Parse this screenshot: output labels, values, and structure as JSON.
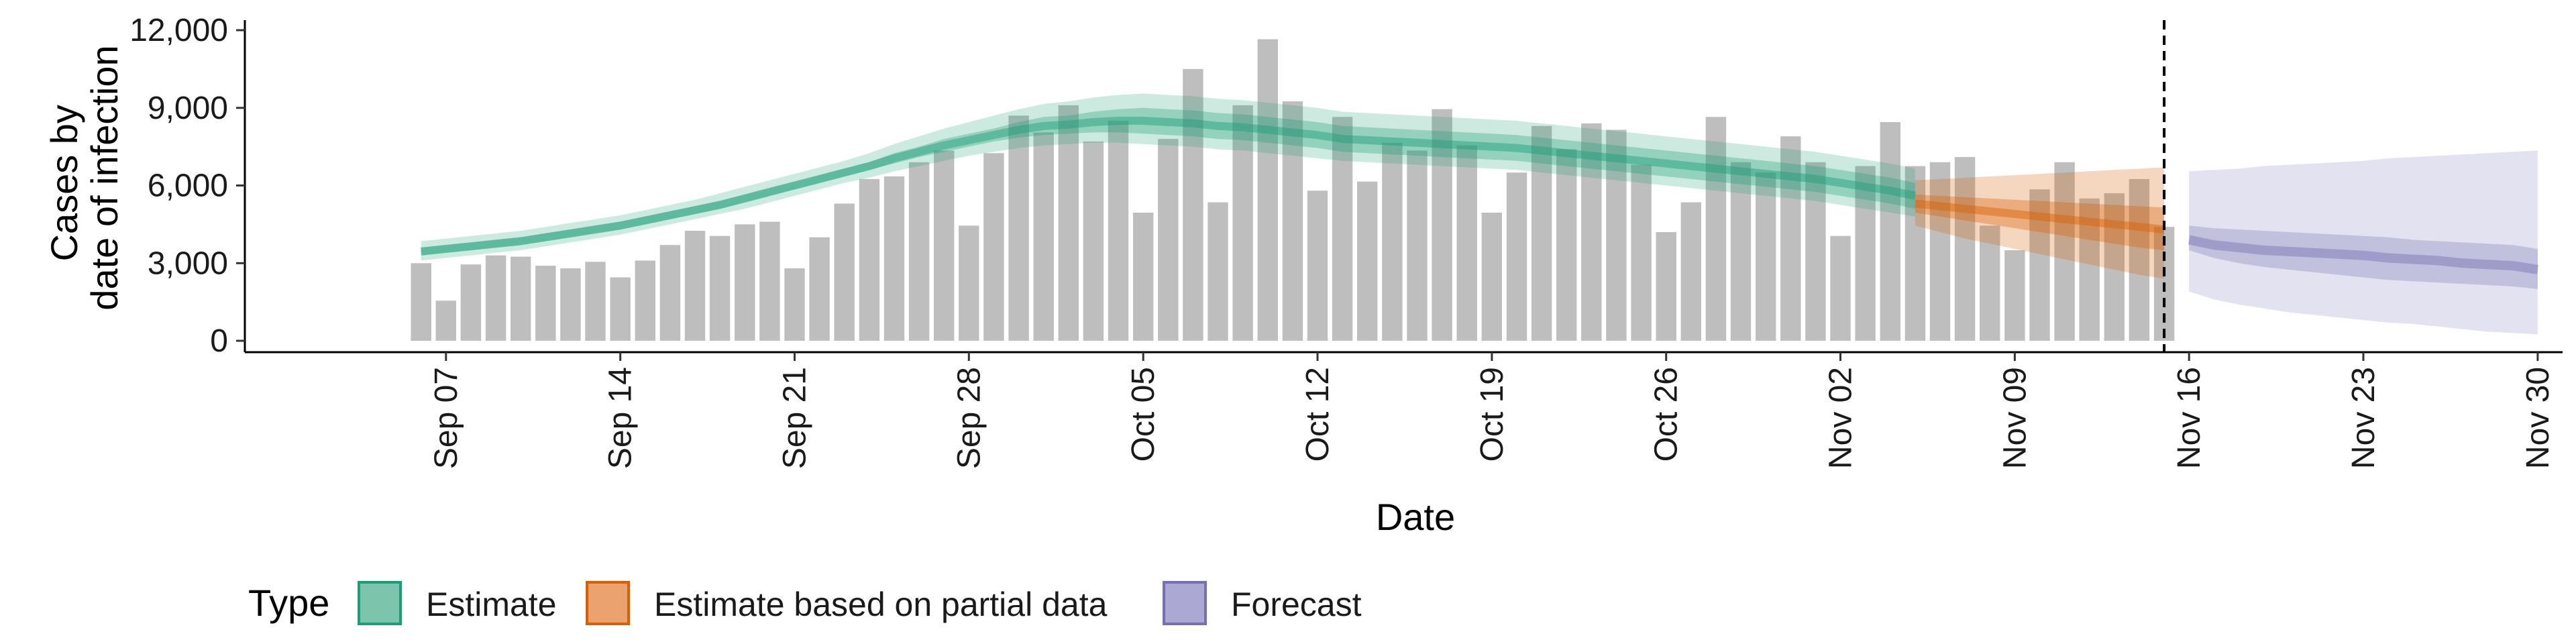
{
  "chart_data": {
    "type": "bar",
    "xlabel": "Date",
    "ylabel": [
      "Cases by",
      "date of infection"
    ],
    "ylim": [
      0,
      12000
    ],
    "y_ticks": [
      0,
      3000,
      6000,
      9000,
      12000
    ],
    "y_tick_labels": [
      "0",
      "3,000",
      "6,000",
      "9,000",
      "12,000"
    ],
    "x_range": [
      "2020-08-31",
      "2020-12-01"
    ],
    "x_ticks": [
      "2020-09-07",
      "2020-09-14",
      "2020-09-21",
      "2020-09-28",
      "2020-10-05",
      "2020-10-12",
      "2020-10-19",
      "2020-10-26",
      "2020-11-02",
      "2020-11-09",
      "2020-11-16",
      "2020-11-23",
      "2020-11-30"
    ],
    "x_tick_labels": [
      "Sep 07",
      "Sep 14",
      "Sep 21",
      "Sep 28",
      "Oct 05",
      "Oct 12",
      "Oct 19",
      "Oct 26",
      "Nov 02",
      "Nov 09",
      "Nov 16",
      "Nov 23",
      "Nov 30"
    ],
    "bars": {
      "start_date": "2020-09-06",
      "values": [
        3000,
        1550,
        2950,
        3300,
        3250,
        2900,
        2800,
        3050,
        2450,
        3100,
        3700,
        4250,
        4050,
        4500,
        4600,
        2800,
        4000,
        5300,
        6250,
        6350,
        6900,
        7350,
        4450,
        7250,
        8700,
        8050,
        9100,
        7700,
        8500,
        4950,
        7800,
        10500,
        5350,
        9100,
        11650,
        9250,
        5800,
        8650,
        6150,
        7650,
        7350,
        8950,
        7550,
        4950,
        6500,
        8300,
        7400,
        8400,
        8150,
        6800,
        4200,
        5350,
        8650,
        6900,
        6500,
        7900,
        6900,
        4050,
        6750,
        8450,
        6750,
        6900,
        7100,
        4450,
        3500,
        5850,
        6900,
        5500,
        5700,
        6250,
        4400
      ],
      "color": "#bebebe"
    },
    "estimate": {
      "name": "Estimate",
      "color": "#1b9e77",
      "start_date": "2020-09-06",
      "median": [
        3450,
        3550,
        3650,
        3750,
        3850,
        4000,
        4150,
        4300,
        4450,
        4650,
        4850,
        5050,
        5250,
        5500,
        5750,
        6000,
        6250,
        6500,
        6750,
        7050,
        7300,
        7550,
        7750,
        7950,
        8150,
        8300,
        8350,
        8450,
        8500,
        8500,
        8450,
        8400,
        8300,
        8250,
        8150,
        8050,
        7950,
        7800,
        7750,
        7700,
        7650,
        7600,
        7550,
        7500,
        7450,
        7350,
        7250,
        7150,
        7050,
        6950,
        6850,
        6750,
        6650,
        6550,
        6450,
        6350,
        6250,
        6100,
        5950,
        5800,
        5600
      ],
      "inner_lo": [
        3300,
        3400,
        3500,
        3600,
        3700,
        3850,
        4000,
        4150,
        4300,
        4500,
        4700,
        4900,
        5100,
        5350,
        5600,
        5850,
        6100,
        6350,
        6600,
        6850,
        7100,
        7300,
        7500,
        7700,
        7850,
        7950,
        8000,
        8050,
        8050,
        8000,
        7950,
        7900,
        7800,
        7750,
        7650,
        7550,
        7450,
        7300,
        7250,
        7200,
        7150,
        7100,
        7050,
        7000,
        6950,
        6850,
        6750,
        6650,
        6550,
        6450,
        6350,
        6250,
        6150,
        6050,
        5950,
        5850,
        5750,
        5600,
        5450,
        5300,
        5100
      ],
      "inner_hi": [
        3600,
        3700,
        3800,
        3900,
        4000,
        4150,
        4300,
        4450,
        4600,
        4800,
        5000,
        5200,
        5400,
        5650,
        5900,
        6150,
        6400,
        6650,
        6900,
        7250,
        7500,
        7800,
        8000,
        8200,
        8450,
        8650,
        8700,
        8850,
        8950,
        9000,
        8950,
        8900,
        8800,
        8750,
        8650,
        8550,
        8450,
        8300,
        8250,
        8200,
        8150,
        8100,
        8050,
        8000,
        7950,
        7850,
        7750,
        7650,
        7550,
        7450,
        7350,
        7250,
        7150,
        7050,
        6950,
        6850,
        6750,
        6600,
        6450,
        6300,
        6100
      ],
      "outer_lo": [
        3100,
        3200,
        3300,
        3400,
        3500,
        3650,
        3800,
        3950,
        4100,
        4300,
        4500,
        4700,
        4900,
        5100,
        5350,
        5600,
        5850,
        6100,
        6300,
        6550,
        6750,
        6950,
        7150,
        7300,
        7450,
        7550,
        7600,
        7650,
        7650,
        7600,
        7550,
        7500,
        7400,
        7350,
        7250,
        7150,
        7050,
        6950,
        6900,
        6850,
        6800,
        6750,
        6700,
        6650,
        6600,
        6500,
        6400,
        6300,
        6200,
        6100,
        6000,
        5900,
        5800,
        5700,
        5600,
        5500,
        5400,
        5250,
        5100,
        4950,
        4800
      ],
      "outer_hi": [
        3850,
        3950,
        4050,
        4150,
        4250,
        4400,
        4550,
        4700,
        4850,
        5050,
        5250,
        5450,
        5700,
        5950,
        6200,
        6450,
        6700,
        6950,
        7250,
        7600,
        7900,
        8200,
        8450,
        8700,
        8950,
        9150,
        9250,
        9400,
        9500,
        9550,
        9500,
        9450,
        9350,
        9300,
        9200,
        9100,
        9000,
        8850,
        8800,
        8750,
        8700,
        8650,
        8600,
        8550,
        8500,
        8400,
        8300,
        8200,
        8100,
        8000,
        7900,
        7800,
        7700,
        7600,
        7500,
        7400,
        7300,
        7150,
        7000,
        6850,
        6650
      ]
    },
    "partial": {
      "name": "Estimate based on partial data",
      "color": "#d95f02",
      "start_date": "2020-11-05",
      "median": [
        5300,
        5200,
        5100,
        5000,
        4900,
        4800,
        4700,
        4600,
        4500,
        4400,
        4300
      ],
      "inner_lo": [
        4950,
        4800,
        4650,
        4500,
        4350,
        4200,
        4050,
        3900,
        3750,
        3600,
        3500
      ],
      "inner_hi": [
        5650,
        5600,
        5550,
        5500,
        5450,
        5400,
        5350,
        5300,
        5250,
        5200,
        5150
      ],
      "outer_lo": [
        4450,
        4200,
        3950,
        3750,
        3550,
        3350,
        3150,
        2950,
        2750,
        2550,
        2400
      ],
      "outer_hi": [
        6200,
        6250,
        6300,
        6350,
        6400,
        6450,
        6500,
        6550,
        6600,
        6650,
        6700
      ]
    },
    "forecast": {
      "name": "Forecast",
      "color": "#7570b3",
      "start_date": "2020-11-16",
      "median": [
        3900,
        3700,
        3600,
        3500,
        3450,
        3400,
        3350,
        3300,
        3200,
        3150,
        3100,
        3000,
        2950,
        2900,
        2750
      ],
      "inner_lo": [
        3500,
        3200,
        3000,
        2850,
        2750,
        2650,
        2550,
        2450,
        2350,
        2300,
        2250,
        2200,
        2150,
        2100,
        2000
      ],
      "inner_hi": [
        4450,
        4350,
        4300,
        4250,
        4200,
        4150,
        4100,
        4050,
        4000,
        3900,
        3850,
        3800,
        3750,
        3700,
        3550
      ],
      "outer_lo": [
        1900,
        1600,
        1400,
        1250,
        1100,
        1000,
        900,
        800,
        700,
        650,
        550,
        450,
        350,
        300,
        250
      ],
      "outer_hi": [
        6550,
        6600,
        6650,
        6750,
        6800,
        6850,
        6900,
        6950,
        7050,
        7100,
        7150,
        7200,
        7250,
        7300,
        7350
      ]
    },
    "vline_date": "2020-11-15",
    "legend": {
      "title": "Type",
      "position": "bottom",
      "entries": [
        {
          "label": "Estimate",
          "fill": "#7cc4ac",
          "stroke": "#1b9e77"
        },
        {
          "label": "Estimate based on partial data",
          "fill": "#eaa26e",
          "stroke": "#d95f02"
        },
        {
          "label": "Forecast",
          "fill": "#aba8d4",
          "stroke": "#7570b3"
        }
      ]
    },
    "grid": false
  }
}
